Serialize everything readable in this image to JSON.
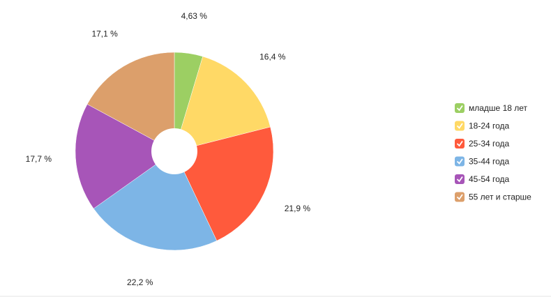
{
  "chart_data": {
    "type": "pie",
    "categories": [
      "младше 18 лет",
      "18-24 года",
      "25-34 года",
      "35-44 года",
      "45-54 года",
      "55 лет и старше"
    ],
    "values": [
      4.63,
      16.4,
      21.9,
      22.2,
      17.7,
      17.1
    ],
    "value_labels": [
      "4,63 %",
      "16,4 %",
      "21,9 %",
      "22,2 %",
      "17,7 %",
      "17,1 %"
    ],
    "colors": [
      "#9ccf63",
      "#ffd966",
      "#ff5a3c",
      "#7db5e6",
      "#a755b8",
      "#dc9f6b"
    ],
    "legend": "right"
  }
}
